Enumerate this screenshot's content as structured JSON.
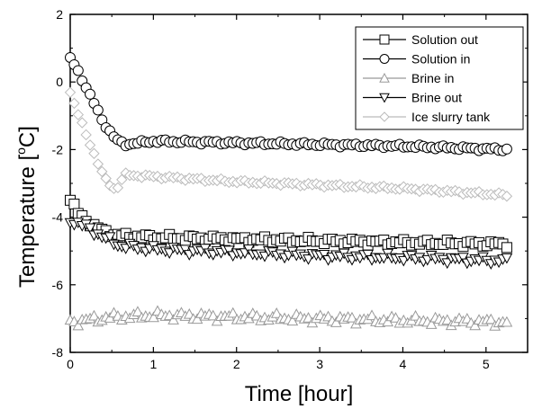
{
  "chart_data": {
    "type": "scatter",
    "title": "",
    "xlabel": "Time [hour]",
    "ylabel_prefix": "Temperature [",
    "ylabel_sup": "o",
    "ylabel_suffix": "C]",
    "xlim": [
      0,
      5.5
    ],
    "ylim": [
      -8,
      2
    ],
    "xticks": [
      0,
      1,
      2,
      3,
      4,
      5
    ],
    "xtick_labels": [
      "0",
      "1",
      "2",
      "3",
      "4",
      "5"
    ],
    "yticks": [
      -8,
      -6,
      -4,
      -2,
      0,
      2
    ],
    "ytick_labels": [
      "-8",
      "-6",
      "-4",
      "-2",
      "0",
      "2"
    ],
    "grid": false,
    "legend_position": "top-right",
    "series": [
      {
        "name": "Solution out",
        "marker": "square",
        "color": "#000000",
        "x_start": 0.0,
        "x_end": 5.25,
        "key_times": [
          0,
          0.1,
          0.2,
          0.3,
          0.5,
          0.6,
          1.0,
          2.0,
          3.0,
          4.0,
          5.25
        ],
        "key_values": [
          -3.5,
          -3.9,
          -4.1,
          -4.3,
          -4.5,
          -4.55,
          -4.6,
          -4.65,
          -4.7,
          -4.75,
          -4.8
        ]
      },
      {
        "name": "Solution in",
        "marker": "circle",
        "color": "#000000",
        "x_start": 0.0,
        "x_end": 5.25,
        "key_times": [
          0,
          0.1,
          0.2,
          0.3,
          0.4,
          0.55,
          0.65,
          1.0,
          2.0,
          3.0,
          4.0,
          5.25
        ],
        "key_values": [
          0.7,
          0.3,
          -0.2,
          -0.7,
          -1.2,
          -1.7,
          -1.85,
          -1.75,
          -1.8,
          -1.85,
          -1.9,
          -2.0
        ]
      },
      {
        "name": "Brine in",
        "marker": "triangle-up",
        "color": "#999999",
        "x_start": 0.0,
        "x_end": 5.25,
        "key_times": [
          0,
          0.5,
          1.0,
          2.0,
          3.0,
          4.0,
          5.25
        ],
        "key_values": [
          -7.1,
          -6.95,
          -6.9,
          -6.95,
          -7.0,
          -7.05,
          -7.1
        ]
      },
      {
        "name": "Brine out",
        "marker": "triangle-down",
        "color": "#000000",
        "x_start": 0.0,
        "x_end": 5.25,
        "key_times": [
          0,
          0.2,
          0.4,
          0.6,
          1.0,
          2.0,
          3.0,
          4.0,
          5.25
        ],
        "key_values": [
          -4.1,
          -4.3,
          -4.6,
          -4.85,
          -4.95,
          -5.05,
          -5.15,
          -5.2,
          -5.3
        ]
      },
      {
        "name": "Ice slurry tank",
        "marker": "diamond",
        "color": "#bbbbbb",
        "x_start": 0.0,
        "x_end": 5.25,
        "key_times": [
          0,
          0.1,
          0.2,
          0.3,
          0.4,
          0.5,
          0.55,
          0.65,
          1.0,
          2.0,
          3.0,
          4.0,
          5.25
        ],
        "key_values": [
          -0.3,
          -1.0,
          -1.6,
          -2.2,
          -2.8,
          -3.1,
          -3.2,
          -2.75,
          -2.8,
          -2.95,
          -3.05,
          -3.15,
          -3.35
        ]
      }
    ]
  }
}
